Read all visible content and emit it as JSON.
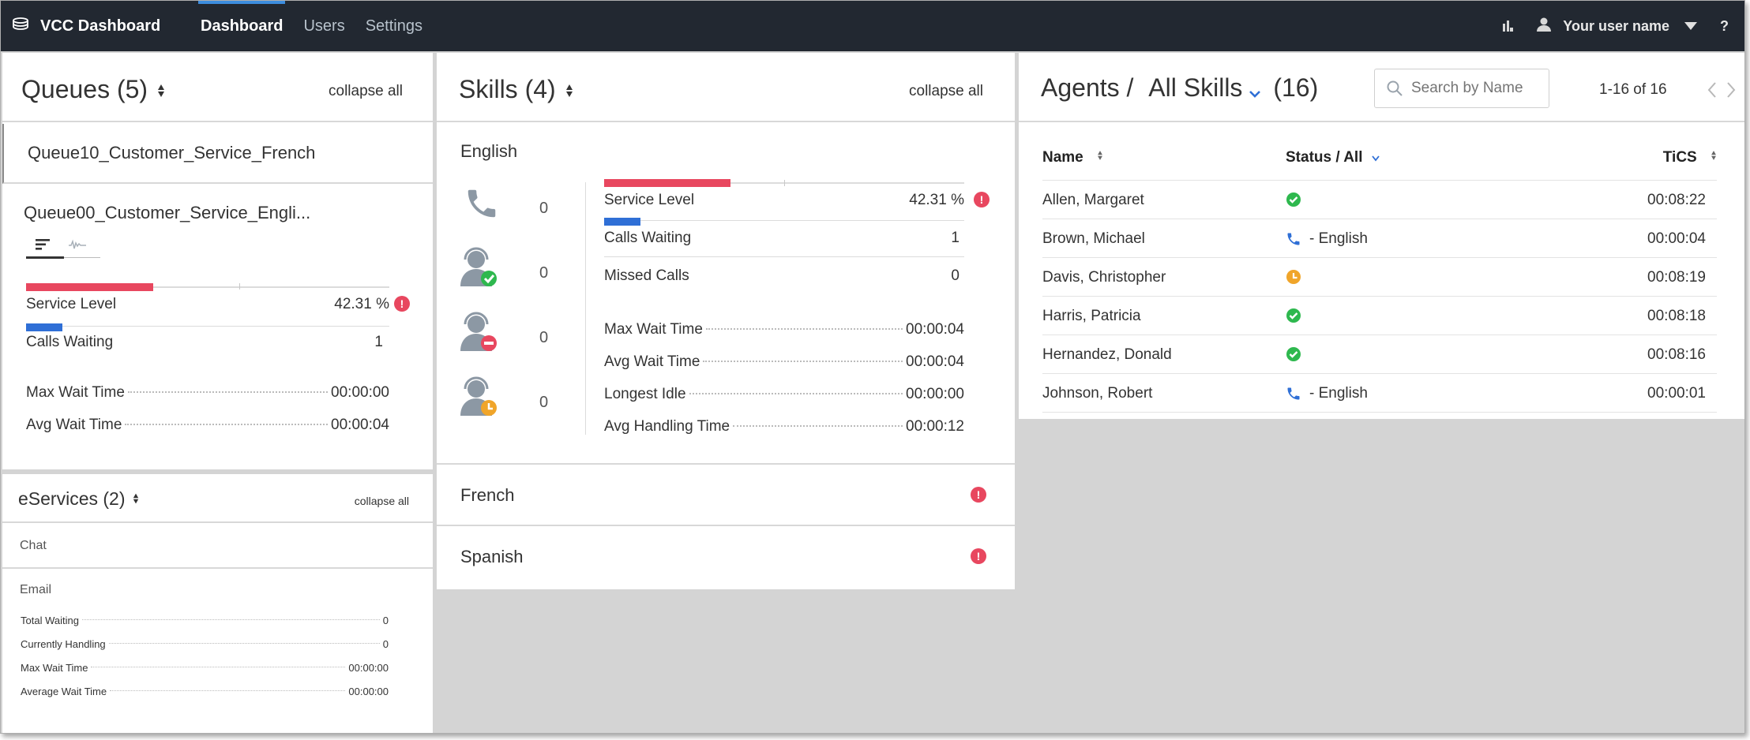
{
  "app": {
    "title": "VCC Dashboard"
  },
  "nav": {
    "tabs": [
      {
        "label": "Dashboard"
      },
      {
        "label": "Users"
      },
      {
        "label": "Settings"
      }
    ]
  },
  "user": {
    "name": "Your user name",
    "help": "?"
  },
  "queues": {
    "title": "Queues (5)",
    "collapse_label": "collapse all",
    "items": [
      {
        "name": "Queue10_Customer_Service_French"
      },
      {
        "name": "Queue00_Customer_Service_Engli..."
      }
    ],
    "expanded": {
      "service_level_label": "Service Level",
      "service_level_value": "42.31 %",
      "service_level_fraction": 0.4231,
      "calls_waiting_label": "Calls Waiting",
      "calls_waiting_value": "1",
      "max_wait_label": "Max Wait Time",
      "max_wait_value": "00:00:00",
      "avg_wait_label": "Avg Wait Time",
      "avg_wait_value": "00:00:04"
    }
  },
  "eservices": {
    "title": "eServices (2)",
    "collapse_label": "collapse all",
    "chat_label": "Chat",
    "email_label": "Email",
    "rows": [
      {
        "label": "Total Waiting",
        "value": "0"
      },
      {
        "label": "Currently Handling",
        "value": "0"
      },
      {
        "label": "Max Wait Time",
        "value": "00:00:00"
      },
      {
        "label": "Average Wait Time",
        "value": "00:00:00"
      }
    ]
  },
  "skills": {
    "title": "Skills (4)",
    "collapse_label": "collapse all",
    "english": {
      "name": "English",
      "counts": {
        "calls": "0",
        "ready": "0",
        "not_ready": "0",
        "wrap_up": "0"
      },
      "service_level_label": "Service Level",
      "service_level_value": "42.31 %",
      "service_level_fraction": 0.4231,
      "calls_waiting_label": "Calls Waiting",
      "calls_waiting_value": "1",
      "missed_calls_label": "Missed Calls",
      "missed_calls_value": "0",
      "max_wait_label": "Max Wait Time",
      "max_wait_value": "00:00:04",
      "avg_wait_label": "Avg Wait Time",
      "avg_wait_value": "00:00:04",
      "longest_idle_label": "Longest Idle",
      "longest_idle_value": "00:00:00",
      "avg_handling_label": "Avg Handling Time",
      "avg_handling_value": "00:00:12"
    },
    "collapsed": [
      {
        "name": "French"
      },
      {
        "name": "Spanish"
      }
    ]
  },
  "agents": {
    "title_prefix": "Agents /",
    "skill_filter": "All Skills",
    "count": "(16)",
    "search_placeholder": "Search by Name",
    "pagination": "1-16 of 16",
    "col_name": "Name",
    "col_status": "Status / All",
    "col_tics": "TiCS",
    "rows": [
      {
        "name": "Allen, Margaret",
        "status": "ready",
        "status_text": "",
        "tics": "00:08:22"
      },
      {
        "name": "Brown, Michael",
        "status": "call",
        "status_text": "- English",
        "tics": "00:00:04"
      },
      {
        "name": "Davis, Christopher",
        "status": "wrap-up",
        "status_text": "",
        "tics": "00:08:19"
      },
      {
        "name": "Harris, Patricia",
        "status": "ready",
        "status_text": "",
        "tics": "00:08:18"
      },
      {
        "name": "Hernandez, Donald",
        "status": "ready",
        "status_text": "",
        "tics": "00:08:16"
      },
      {
        "name": "Johnson, Robert",
        "status": "call",
        "status_text": "- English",
        "tics": "00:00:01"
      }
    ]
  },
  "colors": {
    "accent_red": "#e8475f",
    "accent_blue": "#2f6fd6",
    "ready_green": "#2eb84e",
    "wrap_orange": "#f0a52a",
    "topbar": "#222831"
  },
  "icons": {
    "brand": "database-stack-icon",
    "chart": "bar-chart-icon",
    "user": "user-icon",
    "dropdown": "caret-down-icon",
    "phone": "phone-icon",
    "agent_ready": "agent-ready-icon",
    "agent_not_ready": "agent-not-ready-icon",
    "agent_wrap_up": "agent-wrap-up-icon",
    "search": "search-icon"
  }
}
